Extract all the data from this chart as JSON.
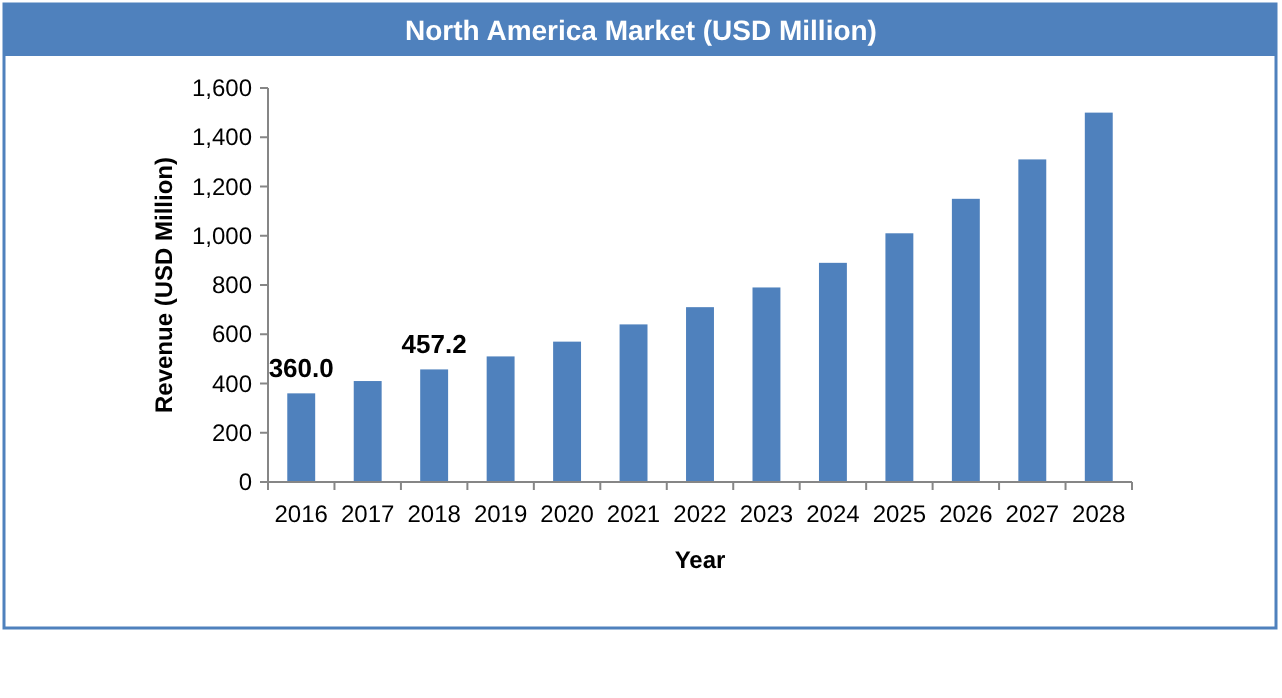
{
  "chart_data": {
    "type": "bar",
    "title": "North America Market (USD Million)",
    "xlabel": "Year",
    "ylabel": "Revenue (USD Million)",
    "categories": [
      "2016",
      "2017",
      "2018",
      "2019",
      "2020",
      "2021",
      "2022",
      "2023",
      "2024",
      "2025",
      "2026",
      "2027",
      "2028"
    ],
    "values": [
      360.0,
      410,
      457.2,
      510,
      570,
      640,
      710,
      790,
      890,
      1010,
      1150,
      1310,
      1500
    ],
    "value_labels": [
      "360.0",
      null,
      "457.2",
      null,
      null,
      null,
      null,
      null,
      null,
      null,
      null,
      null,
      null
    ],
    "color": "#4f81bd",
    "ylim": [
      0,
      1600
    ],
    "yticks": [
      {
        "value": 0,
        "label": "0"
      },
      {
        "value": 200,
        "label": "200"
      },
      {
        "value": 400,
        "label": "400"
      },
      {
        "value": 600,
        "label": "600"
      },
      {
        "value": 800,
        "label": "800"
      },
      {
        "value": 1000,
        "label": "1,000"
      },
      {
        "value": 1200,
        "label": "1,200"
      },
      {
        "value": 1400,
        "label": "1,400"
      },
      {
        "value": 1600,
        "label": "1,600"
      }
    ],
    "grid": false
  }
}
